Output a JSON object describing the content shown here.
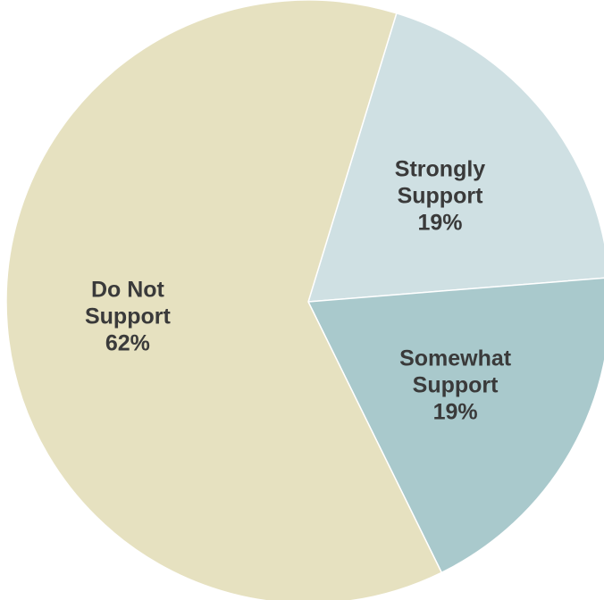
{
  "chart_data": {
    "type": "pie",
    "slices": [
      {
        "name": "Strongly Support",
        "label_lines": [
          "Strongly",
          "Support"
        ],
        "value": 19,
        "value_label": "19%",
        "color": "#cfe0e3"
      },
      {
        "name": "Somewhat Support",
        "label_lines": [
          "Somewhat",
          "Support"
        ],
        "value": 19,
        "value_label": "19%",
        "color": "#a9c9cc"
      },
      {
        "name": "Do Not Support",
        "label_lines": [
          "Do Not",
          "Support"
        ],
        "value": 62,
        "value_label": "62%",
        "color": "#e6e1c0"
      }
    ],
    "legend": "none",
    "data_labels": "inside"
  }
}
